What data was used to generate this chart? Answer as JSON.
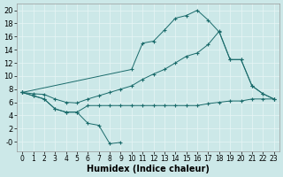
{
  "xlabel": "Humidex (Indice chaleur)",
  "background_color": "#cce8e8",
  "grid_color": "#b0d4d4",
  "line_color": "#1a6b6b",
  "xlim": [
    -0.5,
    23.5
  ],
  "ylim": [
    -1.5,
    21.0
  ],
  "xticks": [
    0,
    1,
    2,
    3,
    4,
    5,
    6,
    7,
    8,
    9,
    10,
    11,
    12,
    13,
    14,
    15,
    16,
    17,
    18,
    19,
    20,
    21,
    22,
    23
  ],
  "yticks": [
    0,
    2,
    4,
    6,
    8,
    10,
    12,
    14,
    16,
    18,
    20
  ],
  "ytick_labels": [
    "-0",
    "2",
    "4",
    "6",
    "8",
    "10",
    "12",
    "14",
    "16",
    "18",
    "20"
  ],
  "line1_x": [
    0,
    1,
    2,
    3,
    4,
    5,
    6,
    7,
    8,
    9
  ],
  "line1_y": [
    7.5,
    7.0,
    6.5,
    5.0,
    4.5,
    4.5,
    2.8,
    2.5,
    -0.3,
    -0.1
  ],
  "line2_x": [
    0,
    10,
    11,
    12,
    13,
    14,
    15,
    16,
    17,
    18,
    19,
    20,
    21,
    22,
    23
  ],
  "line2_y": [
    7.5,
    11.0,
    15.0,
    15.3,
    17.0,
    18.8,
    19.2,
    20.0,
    18.5,
    16.7,
    12.5,
    12.5,
    8.5,
    7.3,
    6.5
  ],
  "line3_x": [
    0,
    1,
    2,
    3,
    4,
    5,
    6,
    7,
    8,
    9,
    10,
    11,
    12,
    13,
    14,
    15,
    16,
    17,
    18,
    19,
    20,
    21,
    22,
    23
  ],
  "line3_y": [
    7.5,
    7.0,
    6.5,
    5.0,
    4.5,
    4.5,
    5.5,
    5.5,
    5.5,
    5.5,
    5.5,
    5.5,
    5.5,
    5.5,
    5.5,
    5.5,
    5.5,
    5.8,
    6.0,
    6.2,
    6.2,
    6.5,
    6.5,
    6.5
  ],
  "line4_x": [
    0,
    1,
    2,
    3,
    4,
    5,
    6,
    7,
    8,
    9,
    10,
    11,
    12,
    13,
    14,
    15,
    16,
    17,
    18,
    19,
    20,
    21,
    22,
    23
  ],
  "line4_y": [
    7.5,
    7.3,
    7.2,
    6.5,
    6.0,
    5.9,
    6.5,
    7.0,
    7.5,
    8.0,
    8.5,
    9.5,
    10.3,
    11.0,
    12.0,
    13.0,
    13.5,
    14.8,
    16.8,
    12.5,
    12.5,
    8.5,
    7.3,
    6.5
  ]
}
